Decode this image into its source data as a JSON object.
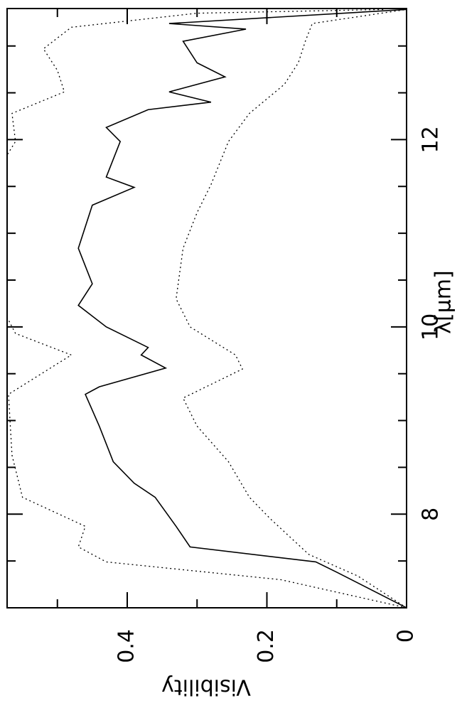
{
  "chart_data": {
    "type": "line",
    "xlabel": "λ[μm]",
    "ylabel": "Visibility",
    "xlim": [
      7,
      13.4
    ],
    "ylim": [
      0,
      0.572
    ],
    "xticks": [
      8,
      10,
      12
    ],
    "xminor_ticks": [
      7.5,
      8.5,
      9,
      9.5,
      10.5,
      11,
      11.5,
      12.5,
      13
    ],
    "yticks": [
      0,
      0.2,
      0.4
    ],
    "yminor_ticks": [
      0.1,
      0.3,
      0.5
    ],
    "series": [
      {
        "color": "#000000",
        "style": "solid",
        "x": [
          7.0,
          7.38,
          7.49,
          7.65,
          7.87,
          8.18,
          8.33,
          8.56,
          8.94,
          9.28,
          9.36,
          9.56,
          9.7,
          9.78,
          10.0,
          10.23,
          10.46,
          10.84,
          11.3,
          11.49,
          11.6,
          11.98,
          12.13,
          12.32,
          12.4,
          12.51,
          12.67,
          12.82,
          13.05,
          13.18,
          13.24,
          13.39
        ],
        "values": [
          0,
          0.1,
          0.13,
          0.31,
          0.33,
          0.36,
          0.39,
          0.42,
          0.44,
          0.46,
          0.44,
          0.345,
          0.38,
          0.37,
          0.43,
          0.47,
          0.45,
          0.47,
          0.45,
          0.39,
          0.43,
          0.41,
          0.43,
          0.37,
          0.28,
          0.34,
          0.26,
          0.3,
          0.32,
          0.23,
          0.34,
          0
        ]
      },
      {
        "color": "#000000",
        "style": "dotted",
        "x": [
          7.0,
          7.3,
          7.49,
          7.65,
          7.87,
          8.18,
          8.63,
          9.28,
          9.7,
          9.93,
          10.5,
          11.5,
          11.98,
          12.28,
          12.51,
          12.74,
          12.97,
          13.2,
          13.35,
          13.39
        ],
        "values": [
          0,
          0.18,
          0.43,
          0.47,
          0.46,
          0.55,
          0.565,
          0.57,
          0.48,
          0.56,
          0.6,
          0.6,
          0.56,
          0.565,
          0.49,
          0.5,
          0.52,
          0.48,
          0.3,
          0.03
        ]
      },
      {
        "color": "#000000",
        "style": "dotted",
        "x": [
          7.0,
          7.34,
          7.57,
          7.95,
          8.18,
          8.56,
          8.94,
          9.24,
          9.55,
          9.7,
          10.0,
          10.3,
          10.84,
          11.22,
          11.52,
          11.98,
          12.28,
          12.59,
          12.82,
          13.05,
          13.24,
          13.39
        ],
        "values": [
          0,
          0.07,
          0.14,
          0.195,
          0.225,
          0.255,
          0.3,
          0.32,
          0.235,
          0.245,
          0.31,
          0.33,
          0.32,
          0.3,
          0.28,
          0.255,
          0.225,
          0.175,
          0.155,
          0.145,
          0.135,
          0
        ]
      }
    ]
  }
}
